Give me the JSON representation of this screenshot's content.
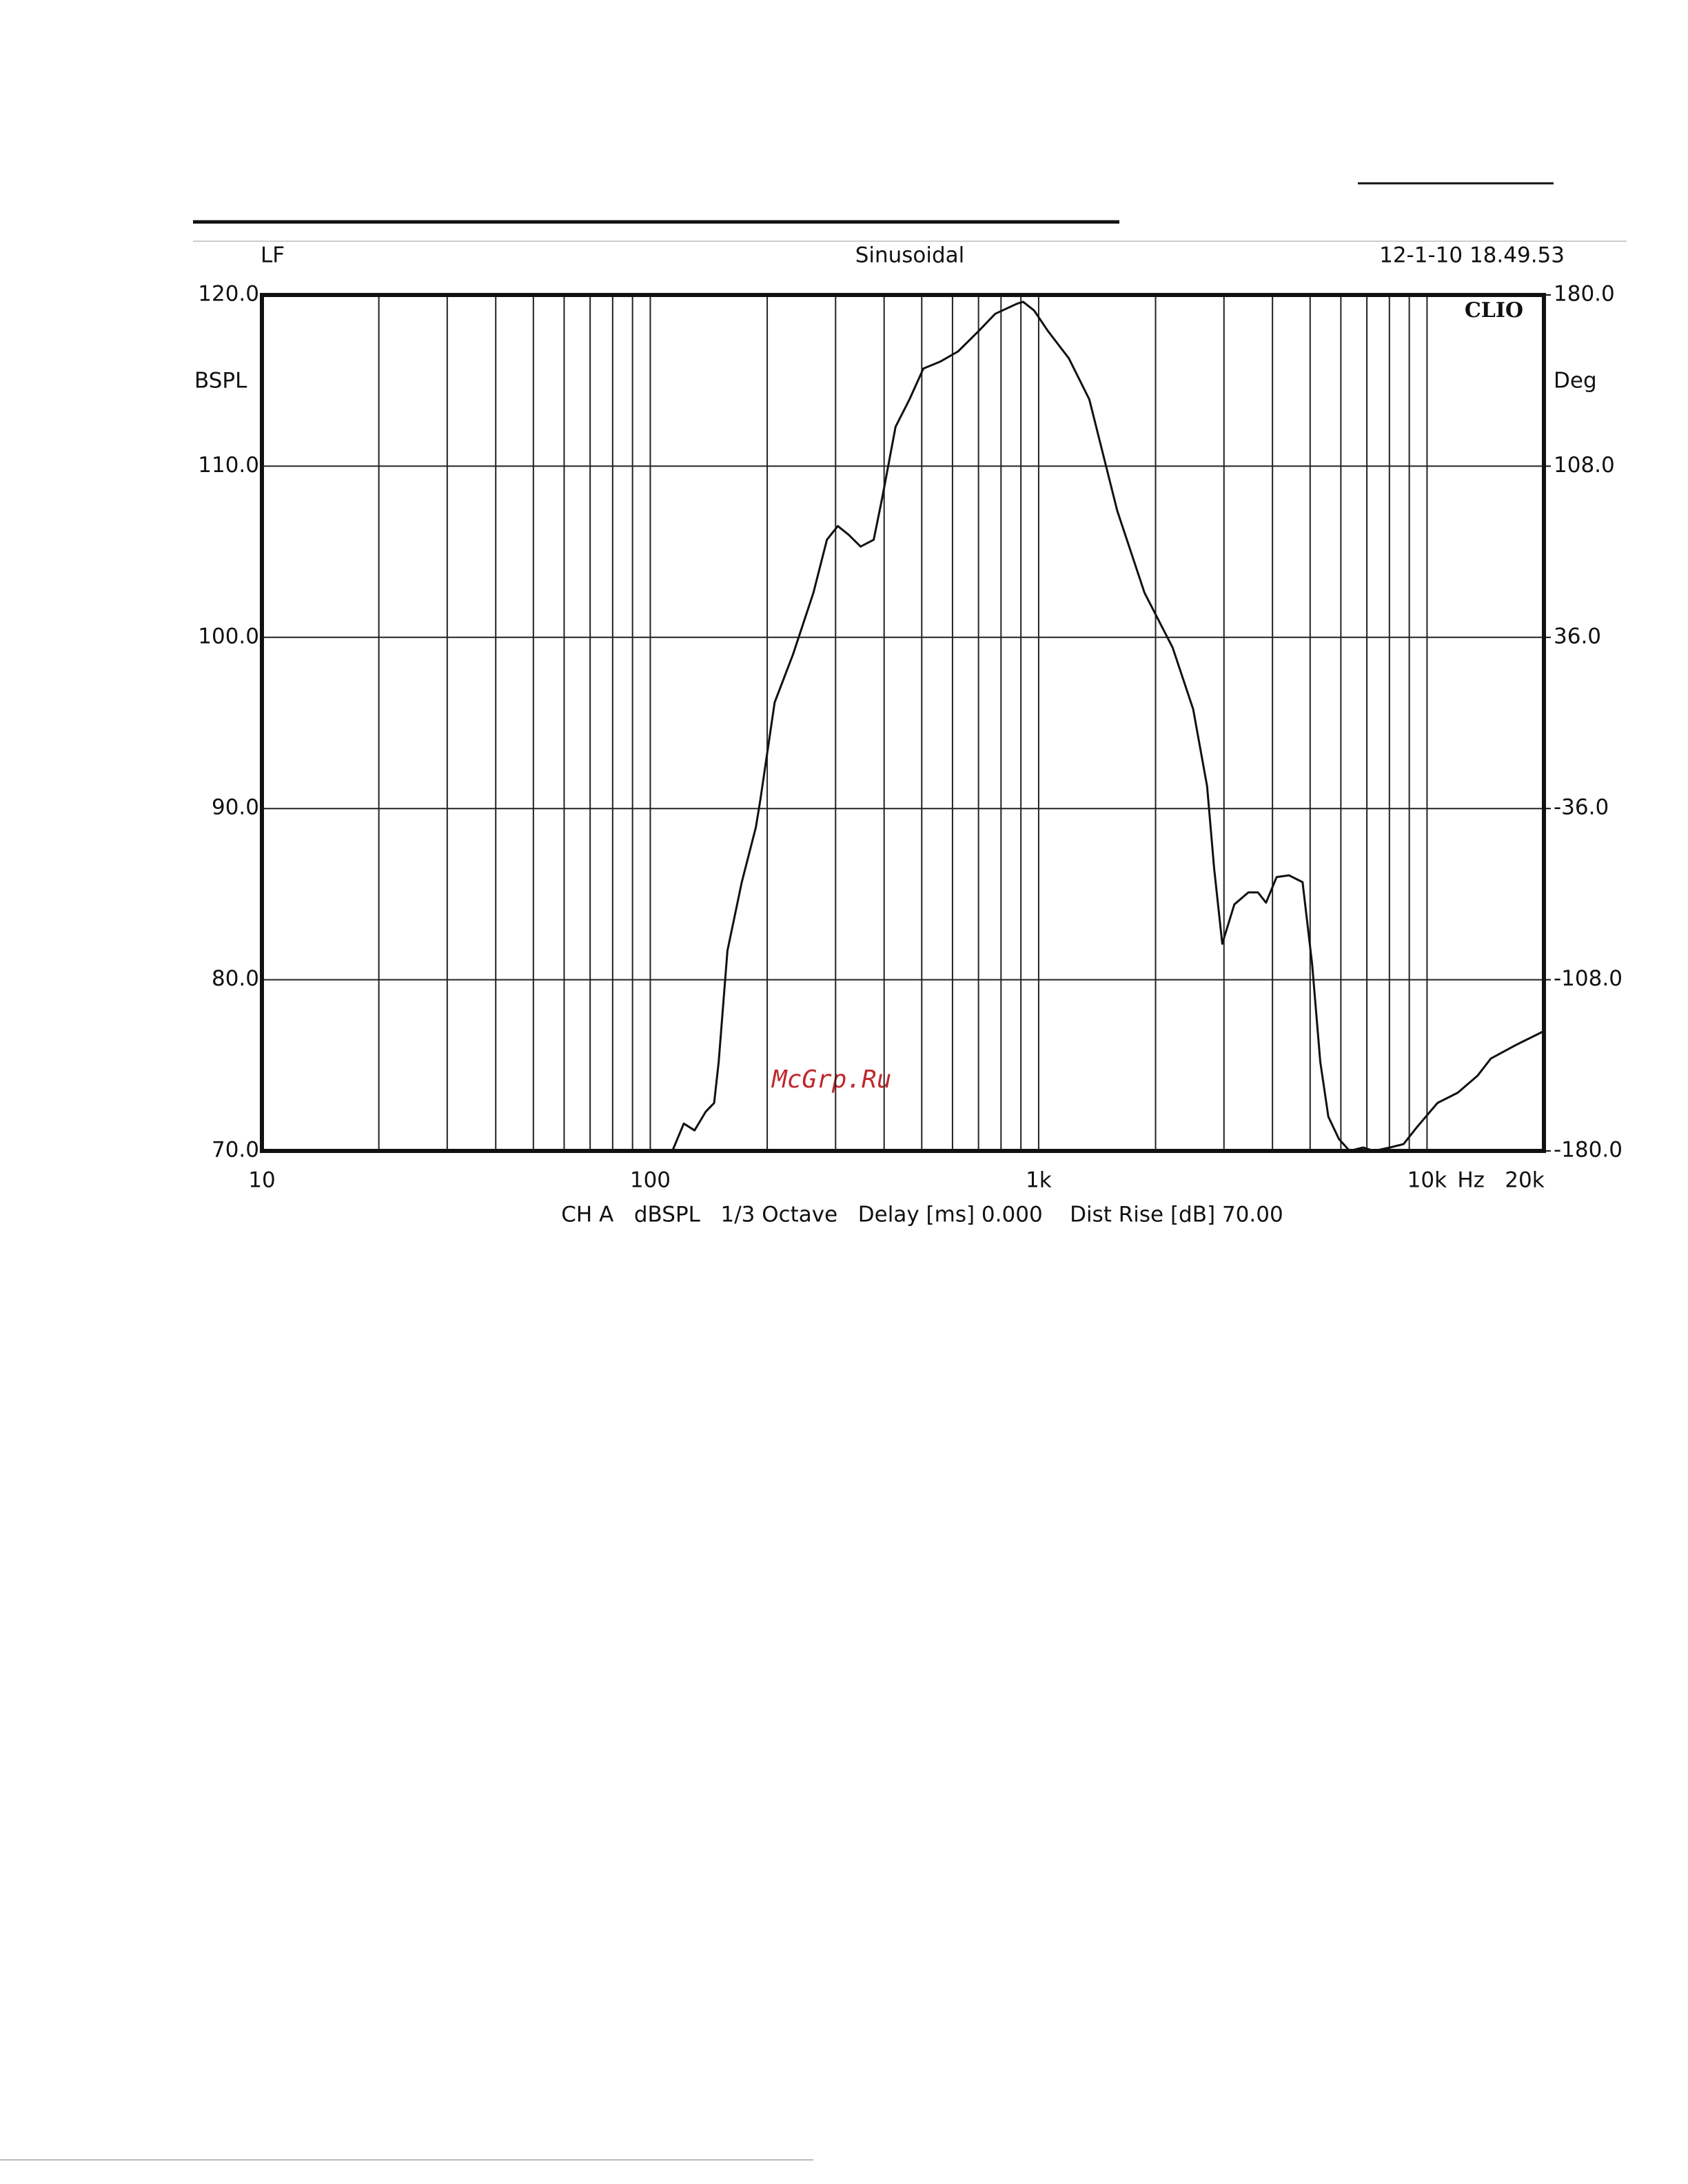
{
  "chart_data": {
    "type": "line",
    "header_left": "LF",
    "title": "Sinusoidal",
    "header_right": "12-1-10 18.49.53",
    "ylabel": "BSPL",
    "y2label": "Deg",
    "brand": "CLIO",
    "xlabel": "Hz",
    "footer": "CH A   dBSPL   1/3 Octave   Delay [ms] 0.000    Dist Rise [dB] 70.00",
    "watermark": "McGrp.Ru",
    "xscale": "log",
    "grid": true,
    "xlim": [
      10,
      20000
    ],
    "xticks": [
      10,
      100,
      {
        "value": 1000,
        "label": "1k"
      },
      {
        "value": 10000,
        "label": "10k"
      },
      {
        "value": 20000,
        "label": "20k"
      }
    ],
    "xminor": [
      20,
      30,
      40,
      50,
      60,
      70,
      80,
      90,
      200,
      300,
      400,
      500,
      600,
      700,
      800,
      900,
      2000,
      3000,
      4000,
      5000,
      6000,
      7000,
      8000,
      9000
    ],
    "ylim": [
      70,
      120
    ],
    "yticks": [
      {
        "value": 70,
        "label": "70.0"
      },
      {
        "value": 80,
        "label": "80.0"
      },
      {
        "value": 90,
        "label": "90.0"
      },
      {
        "value": 100,
        "label": "100.0"
      },
      {
        "value": 110,
        "label": "110.0"
      },
      {
        "value": 120,
        "label": "120.0"
      }
    ],
    "y2lim": [
      -180,
      180
    ],
    "y2ticks": [
      {
        "value": -180,
        "label": "-180.0"
      },
      {
        "value": -108,
        "label": "-108.0"
      },
      {
        "value": -36,
        "label": "-36.0"
      },
      {
        "value": 36,
        "label": "36.0"
      },
      {
        "value": 108,
        "label": "108.0"
      },
      {
        "value": 180,
        "label": "180.0"
      }
    ],
    "x": [
      114,
      122,
      130,
      139,
      146,
      150,
      158,
      172,
      187,
      192,
      209,
      233,
      263,
      285,
      304,
      324,
      348,
      376,
      396,
      428,
      465,
      505,
      557,
      620,
      701,
      773,
      882,
      912,
      973,
      1056,
      1196,
      1350,
      1593,
      1873,
      2213,
      2500,
      2715,
      2830,
      2970,
      3190,
      3467,
      3670,
      3850,
      4100,
      4412,
      4780,
      5060,
      5310,
      5570,
      5930,
      6320,
      6850,
      7300,
      8030,
      8700,
      9430,
      10640,
      12000,
      13500,
      14600,
      16980,
      20000
    ],
    "series": [
      {
        "name": "CH A",
        "color": "#111111",
        "values": [
          70.0,
          71.6,
          71.2,
          72.3,
          72.8,
          75.2,
          81.7,
          85.7,
          88.9,
          90.5,
          96.2,
          99.0,
          102.6,
          105.7,
          106.5,
          106.0,
          105.3,
          105.7,
          108.2,
          112.3,
          113.9,
          115.7,
          116.1,
          116.7,
          117.9,
          118.9,
          119.5,
          119.6,
          119.1,
          117.9,
          116.3,
          113.9,
          107.4,
          102.6,
          99.4,
          95.8,
          91.3,
          86.5,
          82.1,
          84.4,
          85.1,
          85.1,
          84.5,
          86.0,
          86.1,
          85.7,
          80.9,
          75.2,
          72.0,
          70.7,
          70.0,
          70.2,
          70.0,
          70.2,
          70.4,
          71.4,
          72.8,
          73.4,
          74.4,
          75.4,
          76.2,
          77.0
        ]
      }
    ]
  }
}
